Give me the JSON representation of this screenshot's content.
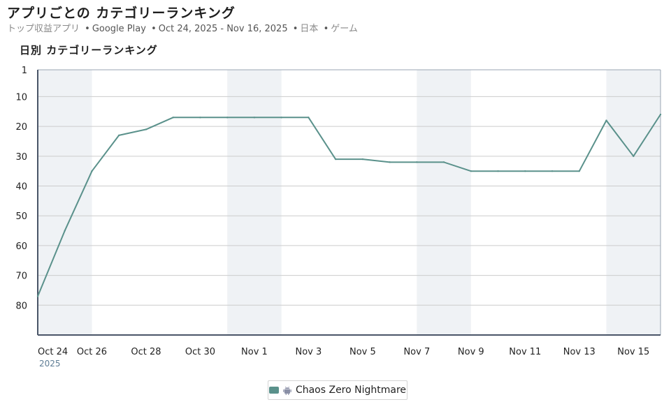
{
  "header": {
    "title": "アプリごとの カテゴリーランキング",
    "subtitle_chart_kind": "トップ収益アプリ",
    "subtitle_store": "Google Play",
    "subtitle_range": "Oct 24, 2025 - Nov 16, 2025",
    "subtitle_country": "日本",
    "subtitle_category": "ゲーム",
    "separator": "•"
  },
  "chart_heading": "日別 カテゴリーランキング",
  "legend": {
    "label": "Chaos Zero Nightmare",
    "icon": "android-icon"
  },
  "colors": {
    "line": "#5a918b",
    "weekend_band": "#eff2f5",
    "grid": "#cccccc",
    "axis": "#4a5568",
    "year_label": "#5f7d95"
  },
  "chart_data": {
    "type": "line",
    "title": "日別 カテゴリーランキング",
    "xlabel": "",
    "ylabel": "",
    "y_inverted": true,
    "ylim": [
      1,
      90
    ],
    "y_ticks": [
      1,
      10,
      20,
      30,
      40,
      50,
      60,
      70,
      80
    ],
    "x_tick_labels": [
      "Oct 24",
      "Oct 26",
      "Oct 28",
      "Oct 30",
      "Nov 1",
      "Nov 3",
      "Nov 5",
      "Nov 7",
      "Nov 9",
      "Nov 11",
      "Nov 13",
      "Nov 15"
    ],
    "x_tick_year": "2025",
    "x": [
      "Oct 24",
      "Oct 25",
      "Oct 26",
      "Oct 27",
      "Oct 28",
      "Oct 29",
      "Oct 30",
      "Oct 31",
      "Nov 1",
      "Nov 2",
      "Nov 3",
      "Nov 4",
      "Nov 5",
      "Nov 6",
      "Nov 7",
      "Nov 8",
      "Nov 9",
      "Nov 10",
      "Nov 11",
      "Nov 12",
      "Nov 13",
      "Nov 14",
      "Nov 15",
      "Nov 16"
    ],
    "weekend_bands": [
      [
        "Oct 24",
        "Oct 26"
      ],
      [
        "Oct 31",
        "Nov 2"
      ],
      [
        "Nov 7",
        "Nov 9"
      ],
      [
        "Nov 14",
        "Nov 16"
      ]
    ],
    "grid": true,
    "legend_position": "bottom-center",
    "series": [
      {
        "name": "Chaos Zero Nightmare",
        "values": [
          77,
          55,
          35,
          23,
          21,
          17,
          17,
          17,
          17,
          17,
          17,
          31,
          31,
          32,
          32,
          32,
          35,
          35,
          35,
          35,
          35,
          18,
          30,
          16
        ]
      }
    ]
  }
}
